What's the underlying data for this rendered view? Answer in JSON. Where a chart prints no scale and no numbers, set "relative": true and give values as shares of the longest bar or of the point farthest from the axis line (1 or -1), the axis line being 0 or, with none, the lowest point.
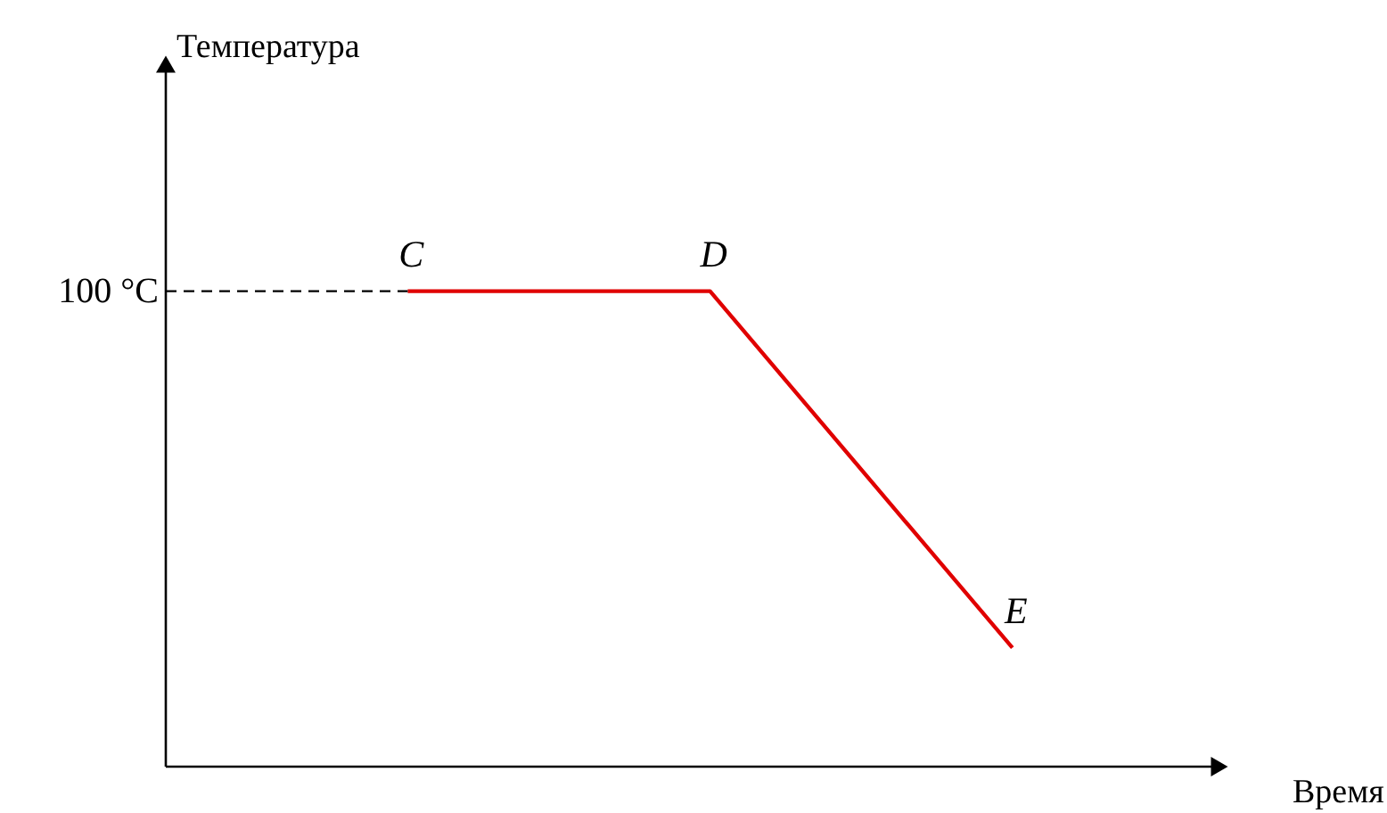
{
  "chart_data": {
    "type": "line",
    "relative": true,
    "xlabel": "Время",
    "categories": [
      null,
      null,
      null
    ],
    "series": [
      {
        "color": "#e00000",
        "values": [
          1,
          1,
          0.25
        ]
      }
    ],
    "annotations": [
      "Температура",
      {
        "text": "C",
        "y": 1
      },
      {
        "text": "D",
        "y": 1
      },
      {
        "text": "E",
        "y": 0.25
      }
    ],
    "ref_lines": [
      {
        "axis": "y",
        "value": 1,
        "label": "100 °C",
        "line_style": "dashed",
        "color": "#000000"
      }
    ]
  }
}
